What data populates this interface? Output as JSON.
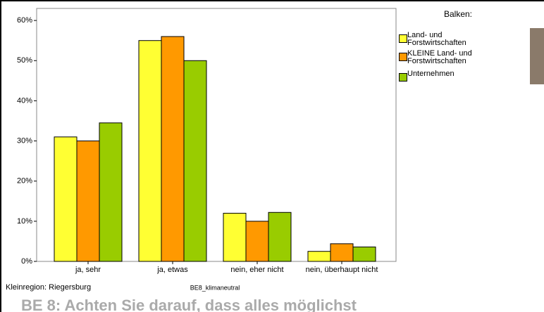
{
  "chart_data": {
    "type": "bar",
    "categories": [
      "ja, sehr",
      "ja, etwas",
      "nein, eher nicht",
      "nein, überhaupt nicht"
    ],
    "series": [
      {
        "name": "Land- und\nForstwirtschaften",
        "color": "#ffff33",
        "values": [
          31,
          55,
          12,
          2.5
        ]
      },
      {
        "name": "KLEINE Land- und\nForstwirtschaften",
        "color": "#ff9900",
        "values": [
          30,
          56,
          10,
          4.4
        ]
      },
      {
        "name": "Unternehmen",
        "color": "#99cc00",
        "values": [
          34.5,
          50,
          12.2,
          3.6
        ]
      }
    ],
    "ylim": [
      0,
      63
    ],
    "yticks": [
      {
        "value": 0,
        "label": "0%"
      },
      {
        "value": 10,
        "label": "10%"
      },
      {
        "value": 20,
        "label": "20%"
      },
      {
        "value": 30,
        "label": "30%"
      },
      {
        "value": 40,
        "label": "40%"
      },
      {
        "value": 50,
        "label": "50%"
      },
      {
        "value": 60,
        "label": "60%"
      }
    ],
    "legend_title": "Balken:",
    "xlabel": "BE8_klimaneutral",
    "footnote": "Kleinregion: Riegersburg",
    "question": "BE 8: Achten Sie darauf, dass alles möglichst"
  }
}
